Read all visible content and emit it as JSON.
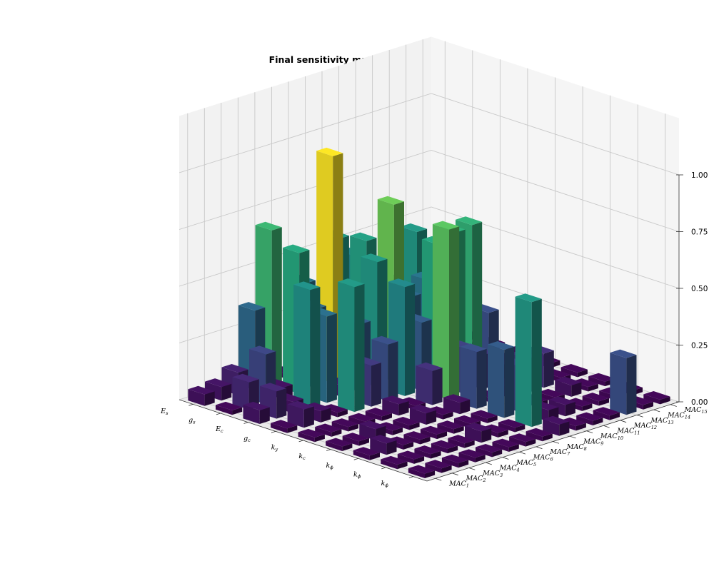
{
  "chart_data": {
    "type": "bar3d",
    "title": "Final sensitivity matrix (Mode shapes)",
    "x_categories": [
      {
        "base": "E",
        "sub": "s"
      },
      {
        "base": "g",
        "sub": "s"
      },
      {
        "base": "E",
        "sub": "c"
      },
      {
        "base": "g",
        "sub": "c"
      },
      {
        "base": "k",
        "sub": "y"
      },
      {
        "base": "k",
        "sub": "c"
      },
      {
        "base": "k",
        "sub": "ϕ"
      },
      {
        "base": "k",
        "sub": "ϕ"
      },
      {
        "base": "k",
        "sub": "ϕ"
      }
    ],
    "y_categories": [
      {
        "base": "MAC",
        "sub": "1"
      },
      {
        "base": "MAC",
        "sub": "2"
      },
      {
        "base": "MAC",
        "sub": "3"
      },
      {
        "base": "MAC",
        "sub": "4"
      },
      {
        "base": "MAC",
        "sub": "5"
      },
      {
        "base": "MAC",
        "sub": "6"
      },
      {
        "base": "MAC",
        "sub": "7"
      },
      {
        "base": "MAC",
        "sub": "8"
      },
      {
        "base": "MAC",
        "sub": "9"
      },
      {
        "base": "MAC",
        "sub": "10"
      },
      {
        "base": "MAC",
        "sub": "11"
      },
      {
        "base": "MAC",
        "sub": "12"
      },
      {
        "base": "MAC",
        "sub": "13"
      },
      {
        "base": "MAC",
        "sub": "14"
      },
      {
        "base": "MAC",
        "sub": "15"
      }
    ],
    "z_ticks": [
      "0.00",
      "0.25",
      "0.50",
      "0.75",
      "1.00"
    ],
    "zlim": [
      0,
      1
    ],
    "colormap": "viridis",
    "values": [
      [
        0.05,
        0.06,
        0.1,
        0.35,
        0.68,
        0.02,
        0.4,
        0.25,
        0.55,
        0.45,
        0.38,
        0.3,
        0.15,
        0.3,
        0.02
      ],
      [
        0.02,
        0.12,
        0.22,
        0.05,
        0.62,
        0.35,
        1.0,
        0.04,
        0.58,
        0.45,
        0.12,
        0.55,
        0.32,
        0.28,
        0.02
      ],
      [
        0.06,
        0.12,
        0.05,
        0.52,
        0.38,
        0.05,
        0.3,
        0.55,
        0.78,
        0.35,
        0.4,
        0.02,
        0.05,
        0.02,
        0.02
      ],
      [
        0.02,
        0.08,
        0.05,
        0.02,
        0.55,
        0.18,
        0.25,
        0.48,
        0.3,
        0.62,
        0.65,
        0.66,
        0.25,
        0.02,
        0.02
      ],
      [
        0.02,
        0.02,
        0.02,
        0.02,
        0.02,
        0.05,
        0.02,
        0.15,
        0.75,
        0.2,
        0.15,
        0.08,
        0.05,
        0.02,
        0.02
      ],
      [
        0.02,
        0.02,
        0.05,
        0.02,
        0.02,
        0.05,
        0.02,
        0.05,
        0.25,
        0.02,
        0.05,
        0.15,
        0.15,
        0.02,
        0.02
      ],
      [
        0.02,
        0.05,
        0.02,
        0.02,
        0.02,
        0.02,
        0.02,
        0.02,
        0.3,
        0.2,
        0.02,
        0.02,
        0.05,
        0.02,
        0.02
      ],
      [
        0.02,
        0.02,
        0.02,
        0.02,
        0.02,
        0.05,
        0.02,
        0.02,
        0.55,
        0.05,
        0.05,
        0.02,
        0.02,
        0.02,
        0.02
      ],
      [
        0.02,
        0.02,
        0.02,
        0.02,
        0.02,
        0.02,
        0.02,
        0.02,
        0.05,
        0.02,
        0.02,
        0.02,
        0.25,
        0.02,
        0.02
      ]
    ]
  }
}
